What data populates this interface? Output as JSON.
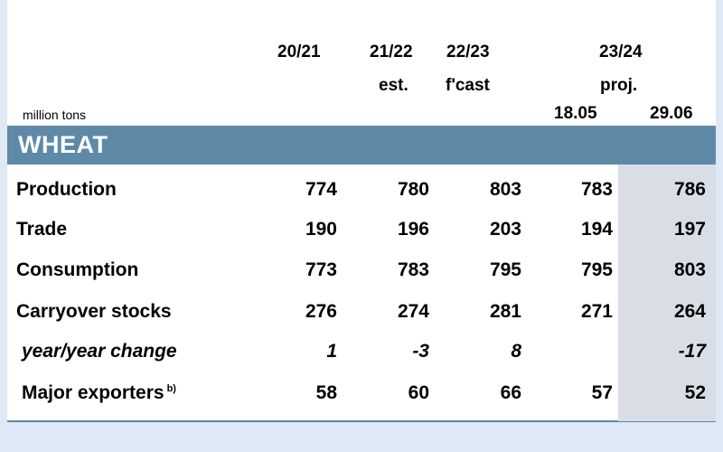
{
  "unit_label": "million tons",
  "columns": {
    "c1": {
      "year": "20/21",
      "sub": ""
    },
    "c2": {
      "year": "21/22",
      "sub": "est."
    },
    "c3": {
      "year": "22/23",
      "sub": "f'cast"
    },
    "c45": {
      "year": "23/24",
      "sub": "proj.",
      "date_a": "18.05",
      "date_b": "29.06"
    }
  },
  "section_title": "WHEAT",
  "rows": [
    {
      "label": "Production",
      "values": [
        "774",
        "780",
        "803",
        "783",
        "786"
      ]
    },
    {
      "label": "Trade",
      "values": [
        "190",
        "196",
        "203",
        "194",
        "197"
      ]
    },
    {
      "label": "Consumption",
      "values": [
        "773",
        "783",
        "795",
        "795",
        "803"
      ]
    },
    {
      "label": "Carryover stocks",
      "values": [
        "276",
        "274",
        "281",
        "271",
        "264"
      ]
    },
    {
      "label": "year/year change",
      "values": [
        "1",
        "-3",
        "8",
        "",
        "-17"
      ]
    },
    {
      "label": "Major exporters",
      "footnote": "b)",
      "values": [
        "58",
        "60",
        "66",
        "57",
        "52"
      ]
    }
  ],
  "colors": {
    "band": "#5e8aa8",
    "shade": "#d9dde6",
    "background": "#dfe9f5"
  }
}
